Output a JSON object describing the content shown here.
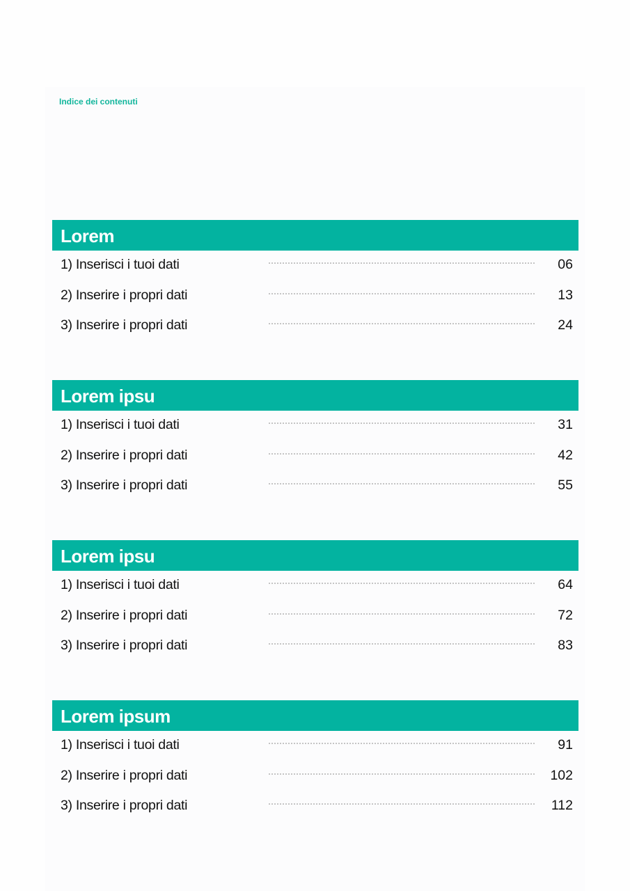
{
  "header": {
    "kicker": "Indice dei contenuti"
  },
  "accent_color": "#03b3a0",
  "sections": [
    {
      "title": "Lorem",
      "items": [
        {
          "label": "1) Inserisci i tuoi dati",
          "page": "06"
        },
        {
          "label": "2) Inserire i propri dati",
          "page": "13"
        },
        {
          "label": "3) Inserire i propri dati",
          "page": "24"
        }
      ]
    },
    {
      "title": "Lorem ipsu",
      "items": [
        {
          "label": "1) Inserisci i tuoi dati",
          "page": "31"
        },
        {
          "label": "2) Inserire i propri dati",
          "page": "42"
        },
        {
          "label": "3) Inserire i propri dati",
          "page": "55"
        }
      ]
    },
    {
      "title": "Lorem ipsu",
      "items": [
        {
          "label": "1) Inserisci i tuoi dati",
          "page": "64"
        },
        {
          "label": "2) Inserire i propri dati",
          "page": "72"
        },
        {
          "label": "3) Inserire i propri dati",
          "page": "83"
        }
      ]
    },
    {
      "title": "Lorem ipsum",
      "items": [
        {
          "label": "1) Inserisci i tuoi dati",
          "page": "91"
        },
        {
          "label": "2) Inserire i propri dati",
          "page": "102"
        },
        {
          "label": "3) Inserire i propri dati",
          "page": "112"
        }
      ]
    }
  ]
}
